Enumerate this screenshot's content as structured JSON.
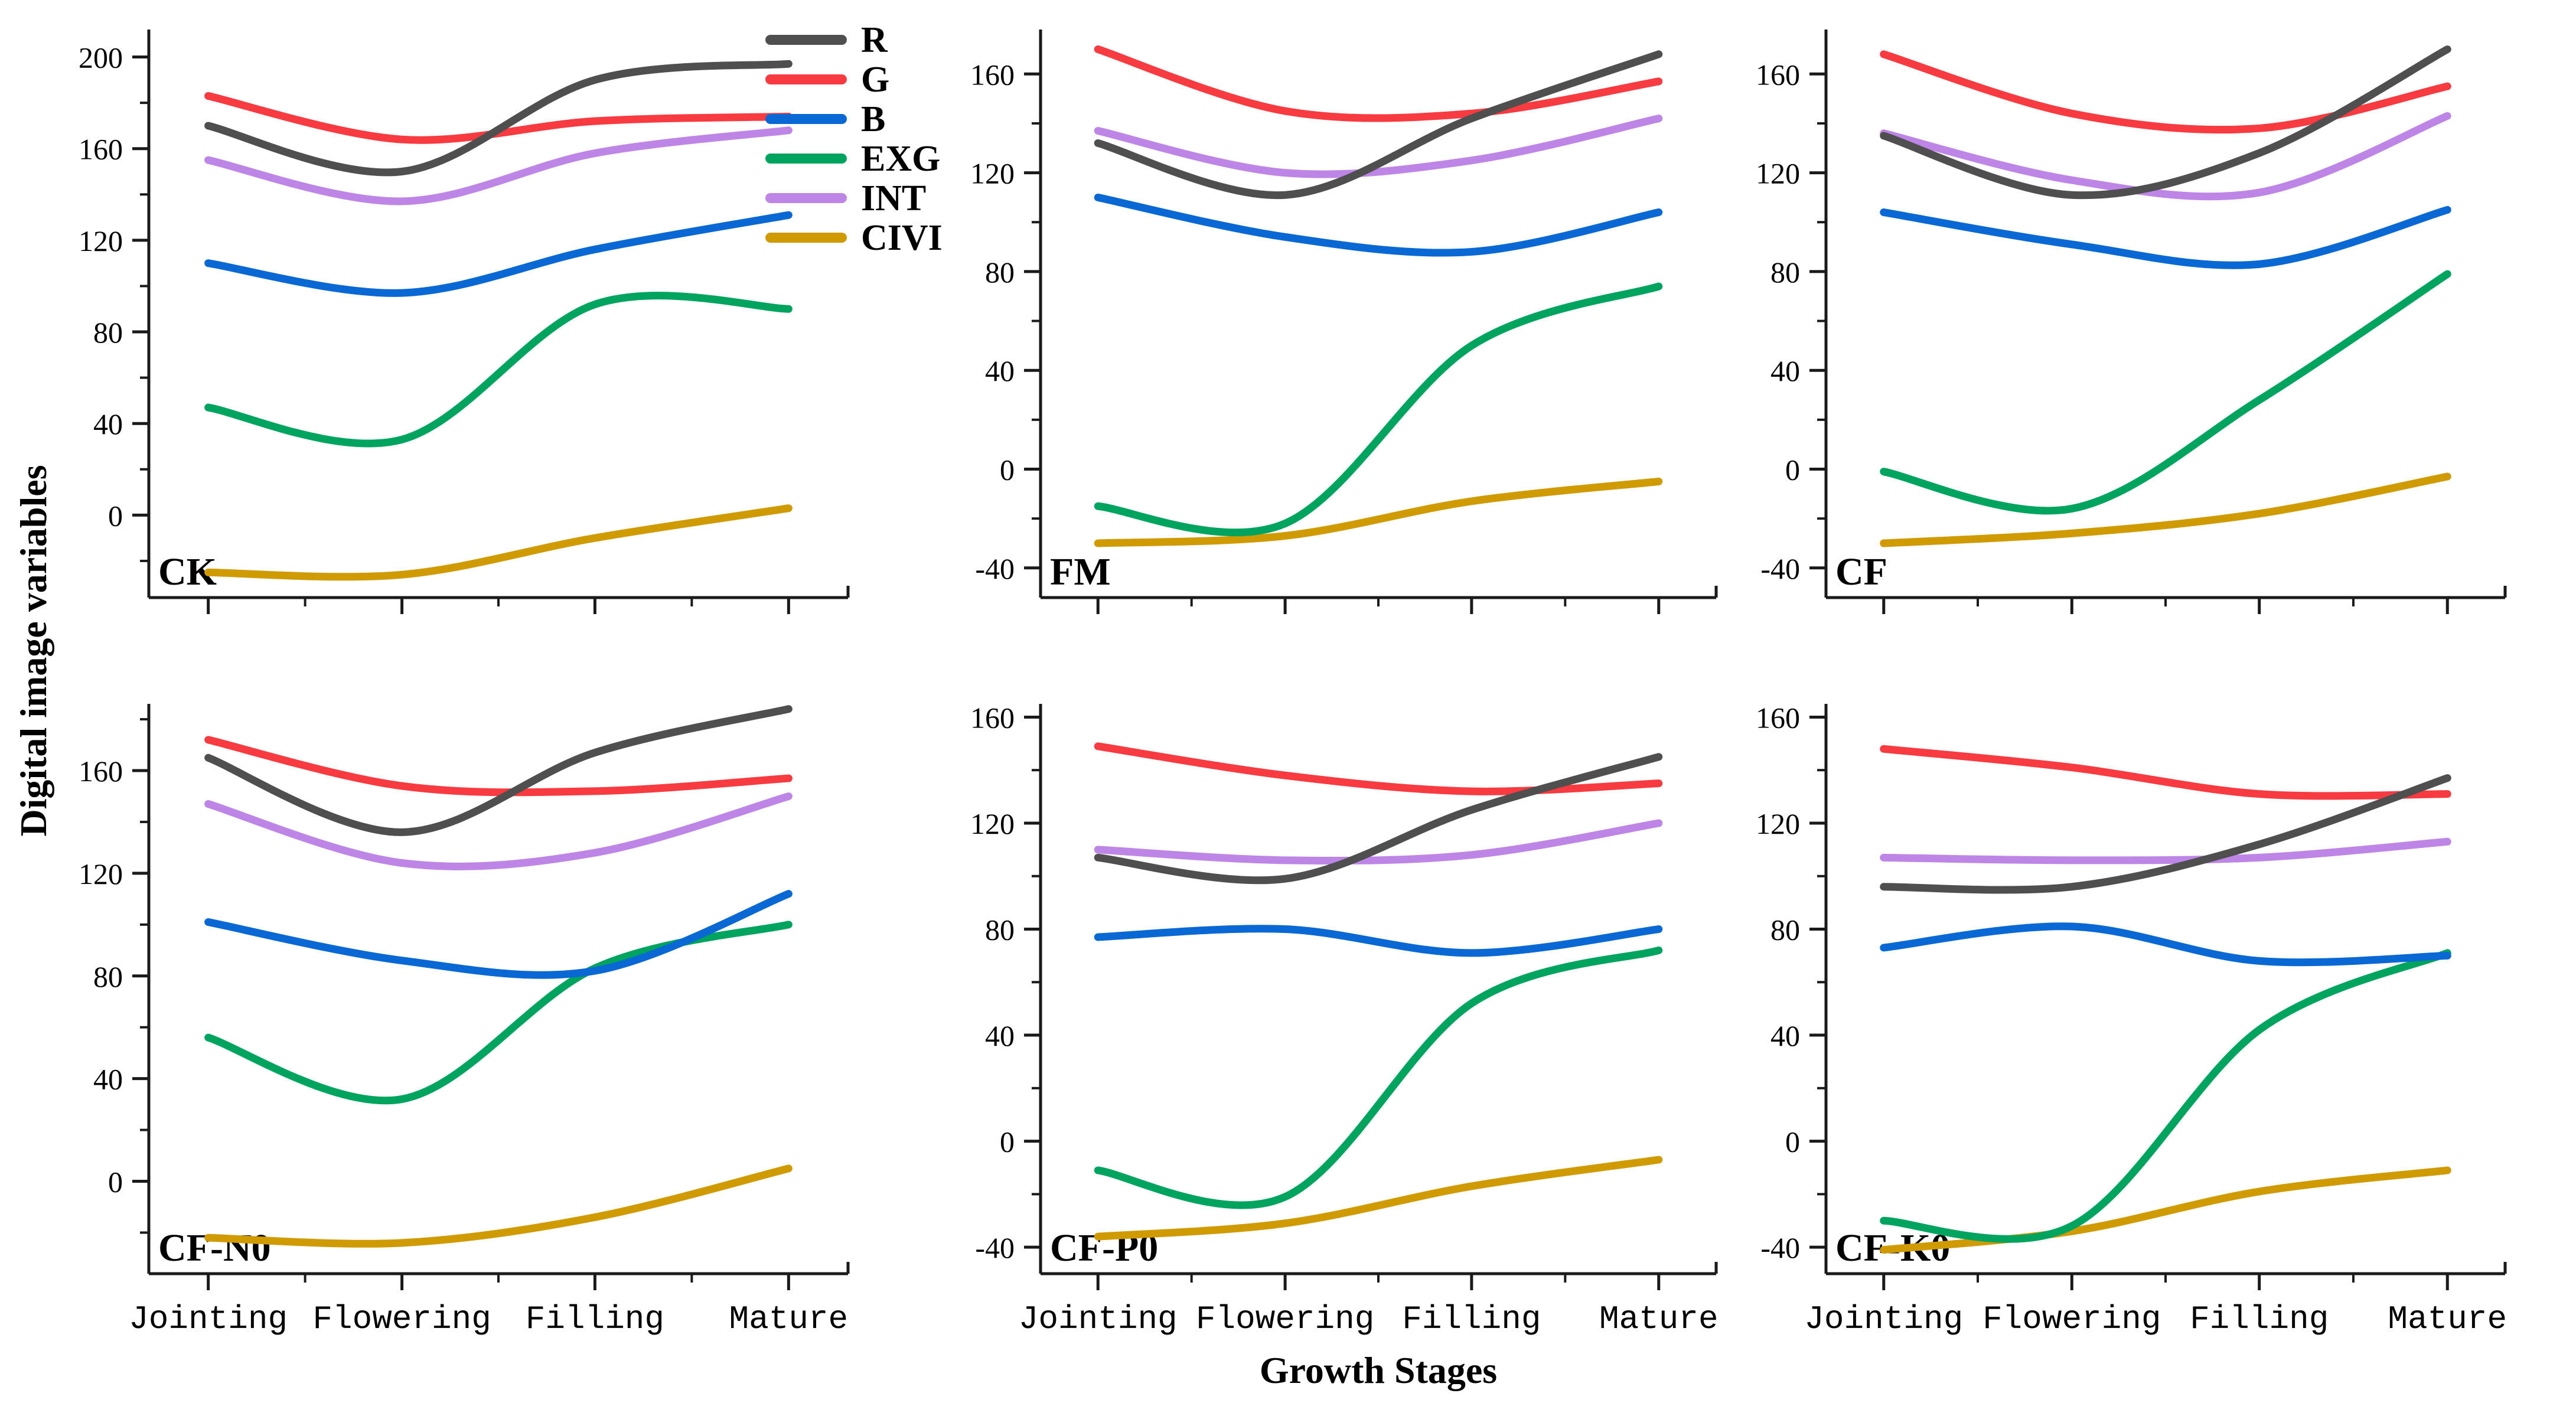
{
  "chart_data": {
    "type": "line",
    "title": "",
    "xlabel": "Growth Stages",
    "ylabel": "Digital image variables",
    "categories": [
      "Jointing",
      "Flowering",
      "Filling",
      "Mature"
    ],
    "grid": false,
    "legend_position": "top-left-of-second-panel",
    "legend": [
      {
        "label": "R",
        "color": "#4f4f4f"
      },
      {
        "label": "G",
        "color": "#f73b40"
      },
      {
        "label": "B",
        "color": "#0a68d4"
      },
      {
        "label": "EXG",
        "color": "#00a45f"
      },
      {
        "label": "INT",
        "color": "#bd85e6"
      },
      {
        "label": "CIVI",
        "color": "#cf9a02"
      }
    ],
    "colors": {
      "R": "#4f4f4f",
      "G": "#f73b40",
      "B": "#0a68d4",
      "EXG": "#00a45f",
      "INT": "#bd85e6",
      "CIVI": "#cf9a02"
    },
    "draw_order": [
      "CIVI",
      "EXG",
      "B",
      "G",
      "INT",
      "R"
    ],
    "panels": [
      {
        "label": "CK",
        "ylim": [
          -36,
          212
        ],
        "yticks_major": [
          0,
          40,
          80,
          120,
          160,
          200
        ],
        "series": {
          "R": [
            170,
            150,
            190,
            197
          ],
          "G": [
            183,
            164,
            172,
            174
          ],
          "B": [
            110,
            97,
            116,
            131
          ],
          "EXG": [
            47,
            33,
            92,
            90
          ],
          "INT": [
            155,
            137,
            158,
            168
          ],
          "CIVI": [
            -25,
            -26,
            -10,
            3
          ]
        }
      },
      {
        "label": "FM",
        "ylim": [
          -52,
          178
        ],
        "yticks_major": [
          -40,
          0,
          40,
          80,
          120,
          160
        ],
        "series": {
          "R": [
            132,
            111,
            142,
            168
          ],
          "G": [
            170,
            145,
            144,
            157
          ],
          "B": [
            110,
            94,
            88,
            104
          ],
          "EXG": [
            -15,
            -22,
            50,
            74
          ],
          "INT": [
            137,
            120,
            125,
            142
          ],
          "CIVI": [
            -30,
            -27,
            -13,
            -5
          ]
        }
      },
      {
        "label": "CF",
        "ylim": [
          -52,
          178
        ],
        "yticks_major": [
          -40,
          0,
          40,
          80,
          120,
          160
        ],
        "series": {
          "R": [
            135,
            111,
            128,
            170
          ],
          "G": [
            168,
            144,
            138,
            155
          ],
          "B": [
            104,
            91,
            83,
            105
          ],
          "EXG": [
            -1,
            -16,
            28,
            79
          ],
          "INT": [
            136,
            117,
            112,
            143
          ],
          "CIVI": [
            -30,
            -26,
            -18,
            -3
          ]
        }
      },
      {
        "label": "CF-N0",
        "ylim": [
          -36,
          186
        ],
        "yticks_major": [
          0,
          40,
          80,
          120,
          160
        ],
        "series": {
          "R": [
            165,
            136,
            167,
            184
          ],
          "G": [
            172,
            154,
            152,
            157
          ],
          "B": [
            101,
            86,
            82,
            112
          ],
          "EXG": [
            56,
            32,
            83,
            100
          ],
          "INT": [
            147,
            124,
            128,
            150
          ],
          "CIVI": [
            -22,
            -24,
            -14,
            5
          ]
        }
      },
      {
        "label": "CF-P0",
        "ylim": [
          -50,
          165
        ],
        "yticks_major": [
          -40,
          0,
          40,
          80,
          120,
          160
        ],
        "series": {
          "R": [
            107,
            99,
            125,
            145
          ],
          "G": [
            149,
            138,
            132,
            135
          ],
          "B": [
            77,
            80,
            71,
            80
          ],
          "EXG": [
            -11,
            -21,
            52,
            72
          ],
          "INT": [
            110,
            106,
            108,
            120
          ],
          "CIVI": [
            -36,
            -31,
            -17,
            -7
          ]
        }
      },
      {
        "label": "CF-K0",
        "ylim": [
          -50,
          165
        ],
        "yticks_major": [
          -40,
          0,
          40,
          80,
          120,
          160
        ],
        "series": {
          "R": [
            96,
            96,
            112,
            137
          ],
          "G": [
            148,
            141,
            131,
            131
          ],
          "B": [
            73,
            81,
            68,
            70
          ],
          "EXG": [
            -30,
            -32,
            42,
            71
          ],
          "INT": [
            107,
            106,
            107,
            113
          ],
          "CIVI": [
            -41,
            -34,
            -19,
            -11
          ]
        }
      }
    ]
  }
}
